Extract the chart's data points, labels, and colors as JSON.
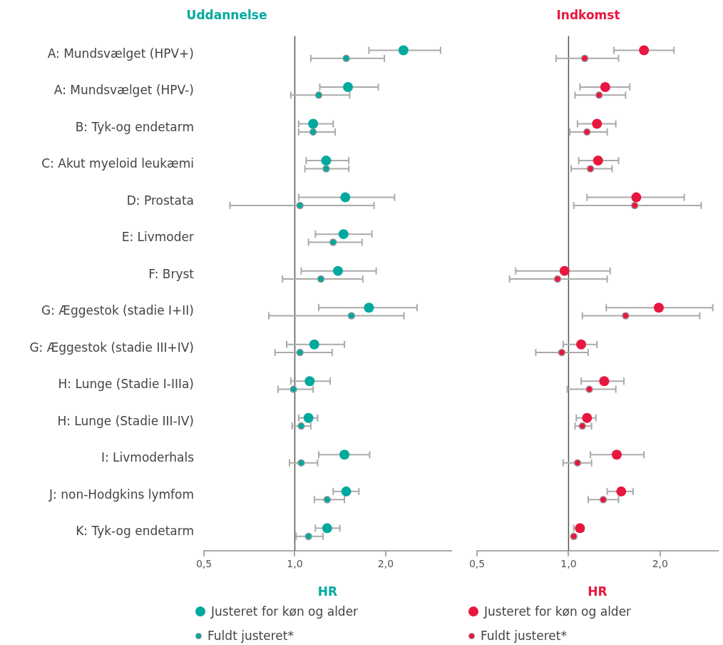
{
  "chart_data": [
    {
      "type": "scatter",
      "title": "Uddannelse",
      "orientation": "horizontal",
      "xlabel": "HR",
      "log": "x",
      "grid": false,
      "legend": "bottom",
      "marker": "circle",
      "categories": [
        "A: Mundsvælget (HPV+)",
        "A: Mundsvælget (HPV-)",
        "B: Tyk-og endetarm",
        "C: Akut myeloid leukæmi",
        "D: Prostata",
        "E: Livmoder",
        "F: Bryst",
        "G: Æggestok (stadie I+II)",
        "G: Æggestok (stadie III+IV)",
        "H: Lunge (Stadie I-IIIa)",
        "H: Lunge (Stadie III-IV)",
        "I: Livmoderhals",
        "J: non-Hodgkins lymfom",
        "K: Tyk-og endetarm"
      ],
      "xlim": [
        0.5,
        3.3
      ],
      "xticks": [
        {
          "value": 0.5,
          "label": "0,5"
        },
        {
          "value": 1,
          "label": "1,0"
        },
        {
          "value": 2,
          "label": "2,0"
        }
      ],
      "ref_lines": [
        {
          "axis": "x",
          "value": 1,
          "color": "#555555"
        }
      ],
      "series": [
        {
          "name": "Justeret for køn og alder",
          "color": "#00a99d",
          "values": [
            2.29,
            1.5,
            1.15,
            1.27,
            1.47,
            1.45,
            1.39,
            1.76,
            1.16,
            1.12,
            1.11,
            1.46,
            1.48,
            1.28
          ],
          "errors": [
            [
              1.76,
              3.04
            ],
            [
              1.21,
              1.89
            ],
            [
              1.03,
              1.34
            ],
            [
              1.09,
              1.51
            ],
            [
              1.03,
              2.14
            ],
            [
              1.17,
              1.8
            ],
            [
              1.05,
              1.86
            ],
            [
              1.2,
              2.54
            ],
            [
              0.94,
              1.46
            ],
            [
              0.97,
              1.31
            ],
            [
              1.03,
              1.19
            ],
            [
              1.2,
              1.77
            ],
            [
              1.34,
              1.63
            ],
            [
              1.17,
              1.41
            ]
          ]
        },
        {
          "name": "Fuldt justeret*",
          "color": "#00a99d",
          "values": [
            1.48,
            1.2,
            1.15,
            1.27,
            1.04,
            1.34,
            1.22,
            1.54,
            1.04,
            0.99,
            1.05,
            1.05,
            1.28,
            1.11
          ],
          "errors": [
            [
              1.13,
              1.98
            ],
            [
              0.97,
              1.52
            ],
            [
              1.03,
              1.36
            ],
            [
              1.08,
              1.51
            ],
            [
              0.61,
              1.83
            ],
            [
              1.11,
              1.67
            ],
            [
              0.91,
              1.68
            ],
            [
              0.82,
              2.3
            ],
            [
              0.86,
              1.33
            ],
            [
              0.88,
              1.15
            ],
            [
              0.98,
              1.13
            ],
            [
              0.96,
              1.19
            ],
            [
              1.16,
              1.46
            ],
            [
              1.01,
              1.24
            ]
          ]
        }
      ]
    },
    {
      "type": "scatter",
      "title": "Indkomst",
      "orientation": "horizontal",
      "xlabel": "HR",
      "log": "x",
      "grid": false,
      "legend": "bottom",
      "marker": "circle",
      "tick_labels": "x",
      "categories": [
        null,
        null,
        null,
        null,
        null,
        null,
        null,
        null,
        null,
        null,
        null,
        null,
        null,
        null
      ],
      "xlim": [
        0.5,
        3.1
      ],
      "xticks": [
        {
          "value": 0.5,
          "label": "0,5"
        },
        {
          "value": 1,
          "label": "1,0"
        },
        {
          "value": 2,
          "label": "2,0"
        }
      ],
      "ref_lines": [
        {
          "axis": "x",
          "value": 1,
          "color": "#555555"
        }
      ],
      "series": [
        {
          "name": "Justeret for køn og alder",
          "color": "#e8173f",
          "values": [
            1.77,
            1.32,
            1.24,
            1.25,
            1.67,
            null,
            0.97,
            1.98,
            1.1,
            1.31,
            1.15,
            1.44,
            1.49,
            1.09
          ],
          "errors": [
            [
              1.41,
              2.22
            ],
            [
              1.09,
              1.59
            ],
            [
              1.07,
              1.43
            ],
            [
              1.08,
              1.46
            ],
            [
              1.15,
              2.4
            ],
            null,
            [
              0.67,
              1.37
            ],
            [
              1.33,
              2.98
            ],
            [
              0.96,
              1.24
            ],
            [
              1.1,
              1.52
            ],
            [
              1.06,
              1.23
            ],
            [
              1.18,
              1.77
            ],
            [
              1.34,
              1.63
            ],
            [
              1.04,
              1.12
            ]
          ]
        },
        {
          "name": "Fuldt justeret*",
          "color": "#e8173f",
          "values": [
            1.13,
            1.26,
            1.15,
            1.18,
            1.65,
            null,
            0.92,
            1.54,
            0.95,
            1.17,
            1.11,
            1.07,
            1.3,
            1.04
          ],
          "errors": [
            [
              0.91,
              1.46
            ],
            [
              1.05,
              1.54
            ],
            [
              1.01,
              1.34
            ],
            [
              1.02,
              1.39
            ],
            [
              1.04,
              2.73
            ],
            null,
            [
              0.64,
              1.34
            ],
            [
              1.11,
              2.7
            ],
            [
              0.78,
              1.16
            ],
            [
              0.99,
              1.43
            ],
            [
              1.05,
              1.19
            ],
            [
              0.96,
              1.19
            ],
            [
              1.16,
              1.46
            ],
            null
          ]
        }
      ]
    }
  ]
}
